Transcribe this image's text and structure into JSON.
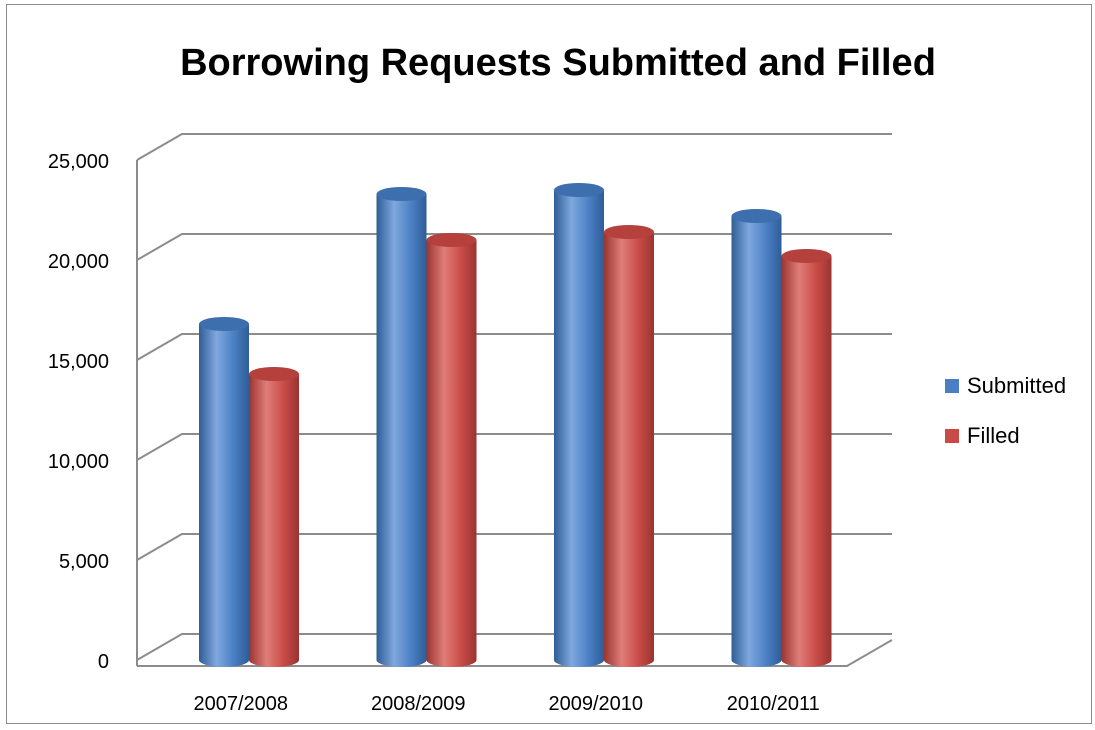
{
  "chart_data": {
    "type": "bar",
    "title": "Borrowing Requests Submitted and Filled",
    "categories": [
      "2007/2008",
      "2008/2009",
      "2009/2010",
      "2010/2011"
    ],
    "series": [
      {
        "name": "Submitted",
        "color": "#4a7fc4",
        "values": [
          16800,
          23300,
          23500,
          22200
        ]
      },
      {
        "name": "Filled",
        "color": "#c84b47",
        "values": [
          14300,
          21000,
          21400,
          20200
        ]
      }
    ],
    "ylim": [
      0,
      25000
    ],
    "yticks": [
      "0",
      "5,000",
      "10,000",
      "15,000",
      "20,000",
      "25,000"
    ],
    "grid": true,
    "legend_position": "right"
  }
}
